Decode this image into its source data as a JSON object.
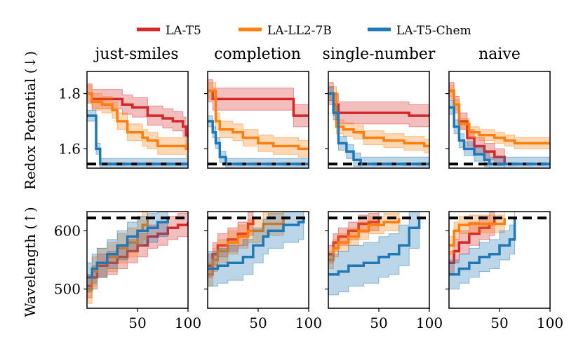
{
  "legend": [
    {
      "name": "LA-T5",
      "color": "#d62728"
    },
    {
      "name": "LA-LL2-7B",
      "color": "#ff7f0e"
    },
    {
      "name": "LA-T5-Chem",
      "color": "#1f77b4"
    }
  ],
  "columns": [
    "just-smiles",
    "completion",
    "single-number",
    "naive"
  ],
  "rows": [
    "Redox Potential (↓)",
    "Wavelength (↑)"
  ],
  "chart_data": [
    {
      "type": "line",
      "title": "just-smiles",
      "ylabel": "Redox Potential (↓)",
      "xlim": [
        0,
        100
      ],
      "ylim": [
        1.53,
        1.88
      ],
      "yticks": [
        1.6,
        1.8
      ],
      "xticks": [],
      "reference": 1.545,
      "series": [
        {
          "name": "LA-T5",
          "points": [
            [
              0,
              1.8
            ],
            [
              5,
              1.78
            ],
            [
              30,
              1.78
            ],
            [
              35,
              1.76
            ],
            [
              45,
              1.75
            ],
            [
              60,
              1.72
            ],
            [
              75,
              1.71
            ],
            [
              85,
              1.7
            ],
            [
              95,
              1.68
            ],
            [
              98,
              1.65
            ],
            [
              100,
              1.64
            ]
          ],
          "band": 0.035
        },
        {
          "name": "LA-LL2-7B",
          "points": [
            [
              0,
              1.8
            ],
            [
              5,
              1.77
            ],
            [
              15,
              1.76
            ],
            [
              25,
              1.74
            ],
            [
              30,
              1.7
            ],
            [
              40,
              1.66
            ],
            [
              55,
              1.64
            ],
            [
              60,
              1.63
            ],
            [
              70,
              1.61
            ],
            [
              95,
              1.61
            ],
            [
              98,
              1.6
            ],
            [
              100,
              1.6
            ]
          ],
          "band": 0.03
        },
        {
          "name": "LA-T5-Chem",
          "points": [
            [
              0,
              1.72
            ],
            [
              5,
              1.72
            ],
            [
              9,
              1.6
            ],
            [
              13,
              1.545
            ],
            [
              100,
              1.545
            ]
          ],
          "band": 0.02,
          "dashed_after": 13
        }
      ]
    },
    {
      "type": "line",
      "title": "completion",
      "ylabel": "Redox Potential (↓)",
      "xlim": [
        0,
        100
      ],
      "ylim": [
        1.53,
        1.88
      ],
      "yticks": [
        1.6,
        1.8
      ],
      "xticks": [],
      "reference": 1.545,
      "series": [
        {
          "name": "LA-T5",
          "points": [
            [
              0,
              1.81
            ],
            [
              5,
              1.78
            ],
            [
              80,
              1.78
            ],
            [
              85,
              1.72
            ],
            [
              100,
              1.72
            ]
          ],
          "band": 0.04
        },
        {
          "name": "LA-LL2-7B",
          "points": [
            [
              0,
              1.81
            ],
            [
              8,
              1.7
            ],
            [
              12,
              1.67
            ],
            [
              25,
              1.66
            ],
            [
              35,
              1.64
            ],
            [
              50,
              1.62
            ],
            [
              65,
              1.61
            ],
            [
              85,
              1.61
            ],
            [
              90,
              1.6
            ],
            [
              100,
              1.6
            ]
          ],
          "band": 0.03
        },
        {
          "name": "LA-T5-Chem",
          "points": [
            [
              0,
              1.7
            ],
            [
              5,
              1.66
            ],
            [
              8,
              1.62
            ],
            [
              12,
              1.57
            ],
            [
              18,
              1.545
            ],
            [
              100,
              1.545
            ]
          ],
          "band": 0.02,
          "dashed_after": 18
        }
      ]
    },
    {
      "type": "line",
      "title": "single-number",
      "ylabel": "Redox Potential (↓)",
      "xlim": [
        0,
        100
      ],
      "ylim": [
        1.53,
        1.88
      ],
      "yticks": [
        1.6,
        1.8
      ],
      "xticks": [],
      "reference": 1.545,
      "series": [
        {
          "name": "LA-T5",
          "points": [
            [
              0,
              1.8
            ],
            [
              5,
              1.76
            ],
            [
              10,
              1.73
            ],
            [
              60,
              1.73
            ],
            [
              80,
              1.72
            ],
            [
              100,
              1.72
            ]
          ],
          "band": 0.04
        },
        {
          "name": "LA-LL2-7B",
          "points": [
            [
              0,
              1.8
            ],
            [
              8,
              1.68
            ],
            [
              15,
              1.67
            ],
            [
              25,
              1.66
            ],
            [
              35,
              1.64
            ],
            [
              55,
              1.63
            ],
            [
              75,
              1.62
            ],
            [
              90,
              1.62
            ],
            [
              95,
              1.61
            ],
            [
              100,
              1.61
            ]
          ],
          "band": 0.025
        },
        {
          "name": "LA-T5-Chem",
          "points": [
            [
              0,
              1.8
            ],
            [
              5,
              1.73
            ],
            [
              10,
              1.62
            ],
            [
              18,
              1.59
            ],
            [
              25,
              1.56
            ],
            [
              32,
              1.545
            ],
            [
              100,
              1.545
            ]
          ],
          "band": 0.025,
          "dashed_after": 32
        }
      ]
    },
    {
      "type": "line",
      "title": "naive",
      "ylabel": "Redox Potential (↓)",
      "xlim": [
        0,
        100
      ],
      "ylim": [
        1.53,
        1.88
      ],
      "yticks": [
        1.6,
        1.8
      ],
      "xticks": [],
      "reference": 1.545,
      "series": [
        {
          "name": "LA-T5",
          "points": [
            [
              0,
              1.81
            ],
            [
              5,
              1.76
            ],
            [
              10,
              1.7
            ],
            [
              18,
              1.64
            ],
            [
              25,
              1.61
            ],
            [
              35,
              1.59
            ],
            [
              45,
              1.57
            ],
            [
              55,
              1.55
            ],
            [
              100,
              1.55
            ]
          ],
          "band": 0.03,
          "end": 55
        },
        {
          "name": "LA-LL2-7B",
          "points": [
            [
              0,
              1.81
            ],
            [
              5,
              1.76
            ],
            [
              10,
              1.69
            ],
            [
              20,
              1.66
            ],
            [
              30,
              1.65
            ],
            [
              45,
              1.64
            ],
            [
              55,
              1.63
            ],
            [
              65,
              1.62
            ],
            [
              100,
              1.62
            ]
          ],
          "band": 0.02
        },
        {
          "name": "LA-T5-Chem",
          "points": [
            [
              0,
              1.75
            ],
            [
              5,
              1.68
            ],
            [
              10,
              1.63
            ],
            [
              15,
              1.6
            ],
            [
              25,
              1.58
            ],
            [
              35,
              1.56
            ],
            [
              40,
              1.545
            ],
            [
              100,
              1.545
            ]
          ],
          "band": 0.025,
          "dashed_after": 40
        }
      ]
    },
    {
      "type": "line",
      "title": "just-smiles",
      "ylabel": "Wavelength (↑)",
      "xlim": [
        0,
        100
      ],
      "ylim": [
        467,
        633
      ],
      "yticks": [
        500,
        600
      ],
      "xticks": [
        50,
        100
      ],
      "reference": 622,
      "series": [
        {
          "name": "LA-T5",
          "points": [
            [
              0,
              505
            ],
            [
              5,
              520
            ],
            [
              10,
              540
            ],
            [
              20,
              545
            ],
            [
              30,
              555
            ],
            [
              40,
              565
            ],
            [
              50,
              575
            ],
            [
              60,
              590
            ],
            [
              70,
              595
            ],
            [
              80,
              605
            ],
            [
              90,
              610
            ],
            [
              100,
              615
            ]
          ],
          "band": 20
        },
        {
          "name": "LA-LL2-7B",
          "points": [
            [
              0,
              500
            ],
            [
              5,
              530
            ],
            [
              10,
              545
            ],
            [
              20,
              555
            ],
            [
              30,
              570
            ],
            [
              40,
              580
            ],
            [
              50,
              600
            ],
            [
              55,
              610
            ],
            [
              60,
              622
            ]
          ],
          "band": 25,
          "end": 60
        },
        {
          "name": "LA-T5-Chem",
          "points": [
            [
              0,
              520
            ],
            [
              5,
              535
            ],
            [
              10,
              545
            ],
            [
              20,
              560
            ],
            [
              30,
              575
            ],
            [
              40,
              590
            ],
            [
              50,
              600
            ],
            [
              60,
              605
            ],
            [
              70,
              615
            ],
            [
              80,
              622
            ]
          ],
          "band": 25,
          "end": 80
        }
      ]
    },
    {
      "type": "line",
      "title": "completion",
      "ylabel": "Wavelength (↑)",
      "xlim": [
        0,
        100
      ],
      "ylim": [
        467,
        633
      ],
      "yticks": [
        500,
        600
      ],
      "xticks": [
        50,
        100
      ],
      "reference": 622,
      "series": [
        {
          "name": "LA-T5",
          "points": [
            [
              0,
              540
            ],
            [
              5,
              560
            ],
            [
              10,
              575
            ],
            [
              20,
              585
            ],
            [
              30,
              595
            ],
            [
              40,
              612
            ],
            [
              45,
              622
            ]
          ],
          "band": 20,
          "end": 45
        },
        {
          "name": "LA-LL2-7B",
          "points": [
            [
              0,
              525
            ],
            [
              5,
              550
            ],
            [
              10,
              565
            ],
            [
              20,
              580
            ],
            [
              30,
              590
            ],
            [
              40,
              600
            ],
            [
              55,
              612
            ],
            [
              75,
              622
            ]
          ],
          "band": 20,
          "end": 75
        },
        {
          "name": "LA-T5-Chem",
          "points": [
            [
              0,
              535
            ],
            [
              10,
              540
            ],
            [
              20,
              545
            ],
            [
              35,
              555
            ],
            [
              45,
              575
            ],
            [
              55,
              590
            ],
            [
              60,
              600
            ],
            [
              75,
              610
            ],
            [
              90,
              615
            ],
            [
              95,
              622
            ]
          ],
          "band": 30,
          "end": 95
        }
      ]
    },
    {
      "type": "line",
      "title": "single-number",
      "ylabel": "Wavelength (↑)",
      "xlim": [
        0,
        100
      ],
      "ylim": [
        467,
        633
      ],
      "yticks": [
        500,
        600
      ],
      "xticks": [
        50,
        100
      ],
      "reference": 622,
      "series": [
        {
          "name": "LA-T5",
          "points": [
            [
              0,
              560
            ],
            [
              5,
              580
            ],
            [
              10,
              590
            ],
            [
              20,
              600
            ],
            [
              30,
              612
            ],
            [
              40,
              615
            ],
            [
              50,
              622
            ]
          ],
          "band": 15,
          "end": 50
        },
        {
          "name": "LA-LL2-7B",
          "points": [
            [
              0,
              550
            ],
            [
              5,
              570
            ],
            [
              10,
              580
            ],
            [
              20,
              590
            ],
            [
              30,
              600
            ],
            [
              40,
              610
            ],
            [
              55,
              615
            ],
            [
              70,
              622
            ]
          ],
          "band": 15,
          "end": 70
        },
        {
          "name": "LA-T5-Chem",
          "points": [
            [
              0,
              525
            ],
            [
              10,
              530
            ],
            [
              20,
              540
            ],
            [
              35,
              545
            ],
            [
              50,
              555
            ],
            [
              60,
              560
            ],
            [
              70,
              575
            ],
            [
              80,
              605
            ],
            [
              90,
              622
            ]
          ],
          "band": 35,
          "end": 90
        }
      ]
    },
    {
      "type": "line",
      "title": "naive",
      "ylabel": "Wavelength (↑)",
      "xlim": [
        0,
        100
      ],
      "ylim": [
        467,
        633
      ],
      "yticks": [
        500,
        600
      ],
      "xticks": [
        50,
        100
      ],
      "reference": 622,
      "series": [
        {
          "name": "LA-T5",
          "points": [
            [
              0,
              545
            ],
            [
              5,
              565
            ],
            [
              10,
              580
            ],
            [
              20,
              595
            ],
            [
              30,
              605
            ],
            [
              40,
              612
            ],
            [
              45,
              622
            ]
          ],
          "band": 20,
          "end": 45
        },
        {
          "name": "LA-LL2-7B",
          "points": [
            [
              0,
              575
            ],
            [
              5,
              600
            ],
            [
              10,
              610
            ],
            [
              20,
              612
            ],
            [
              40,
              612
            ],
            [
              50,
              612
            ],
            [
              55,
              622
            ]
          ],
          "band": 15,
          "end": 55
        },
        {
          "name": "LA-T5-Chem",
          "points": [
            [
              0,
              525
            ],
            [
              10,
              535
            ],
            [
              20,
              545
            ],
            [
              30,
              555
            ],
            [
              40,
              560
            ],
            [
              50,
              575
            ],
            [
              60,
              585
            ],
            [
              65,
              622
            ]
          ],
          "band": 25,
          "end": 65
        }
      ]
    }
  ]
}
